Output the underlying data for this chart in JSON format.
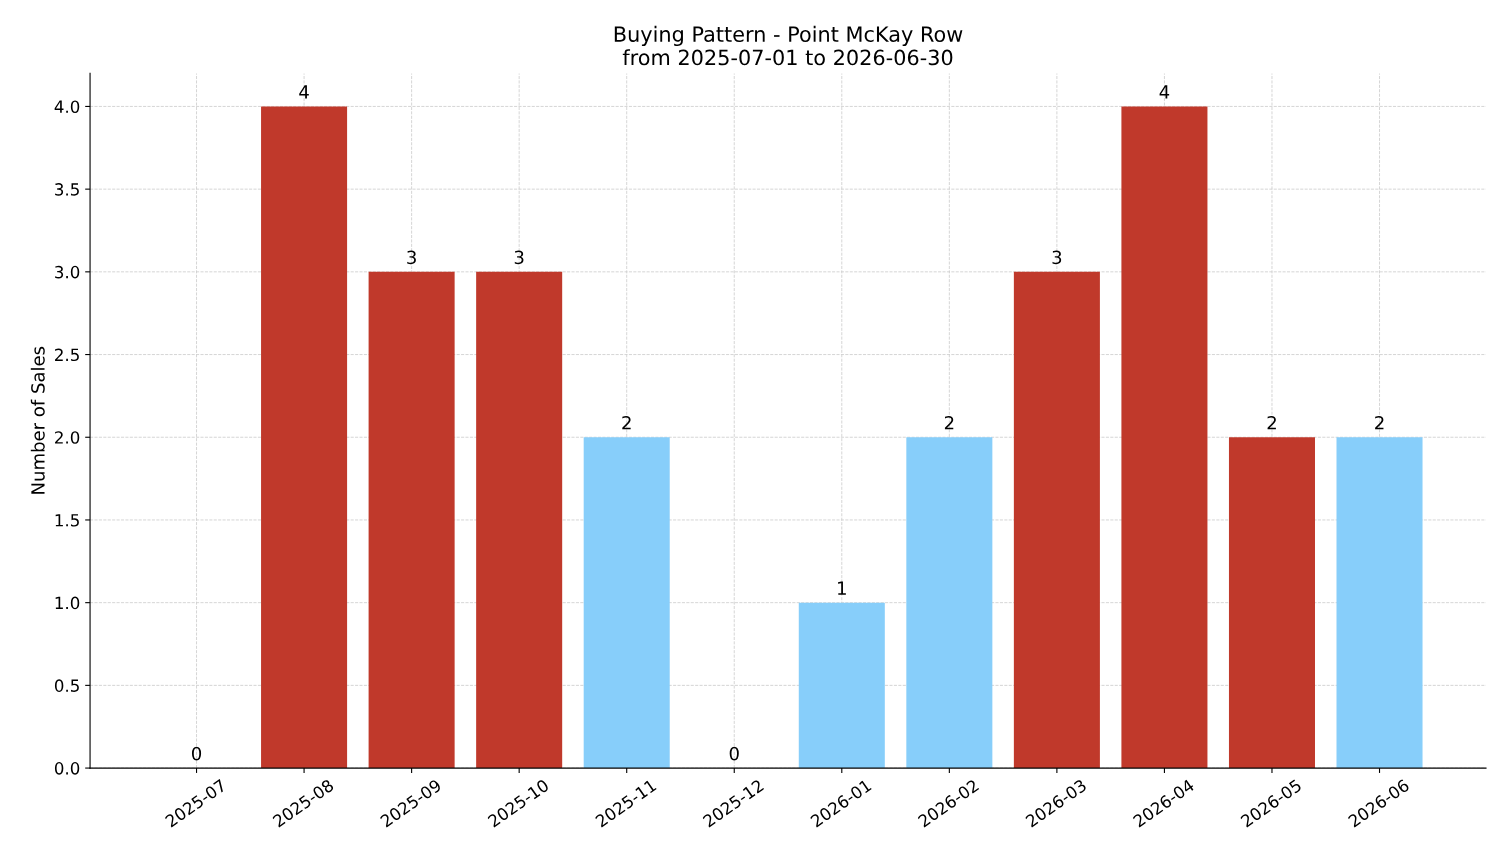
{
  "chart_data": {
    "type": "bar",
    "title": "Buying Pattern - Point McKay Row\nfrom 2025-07-01 to 2026-06-30",
    "ylabel": "Number of Sales",
    "categories": [
      "2025-07",
      "2025-08",
      "2025-09",
      "2025-10",
      "2025-11",
      "2025-12",
      "2026-01",
      "2026-02",
      "2026-03",
      "2026-04",
      "2026-05",
      "2026-06"
    ],
    "values": [
      0,
      4,
      3,
      3,
      2,
      0,
      1,
      2,
      3,
      4,
      2,
      2
    ],
    "colors": [
      "#87cefa",
      "#c0392b",
      "#c0392b",
      "#c0392b",
      "#87cefa",
      "#87cefa",
      "#87cefa",
      "#87cefa",
      "#c0392b",
      "#c0392b",
      "#c0392b",
      "#87cefa"
    ],
    "ylim": [
      0,
      4.2
    ],
    "yticks": [
      {
        "value": 0,
        "label": "0.0"
      },
      {
        "value": 0.5,
        "label": "0.5"
      },
      {
        "value": 1,
        "label": "1.0"
      },
      {
        "value": 1.5,
        "label": "1.5"
      },
      {
        "value": 2,
        "label": "2.0"
      },
      {
        "value": 2.5,
        "label": "2.5"
      },
      {
        "value": 3,
        "label": "3.0"
      },
      {
        "value": 3.5,
        "label": "3.5"
      },
      {
        "value": 4,
        "label": "4.0"
      }
    ],
    "grid": true,
    "data_labels": true
  }
}
